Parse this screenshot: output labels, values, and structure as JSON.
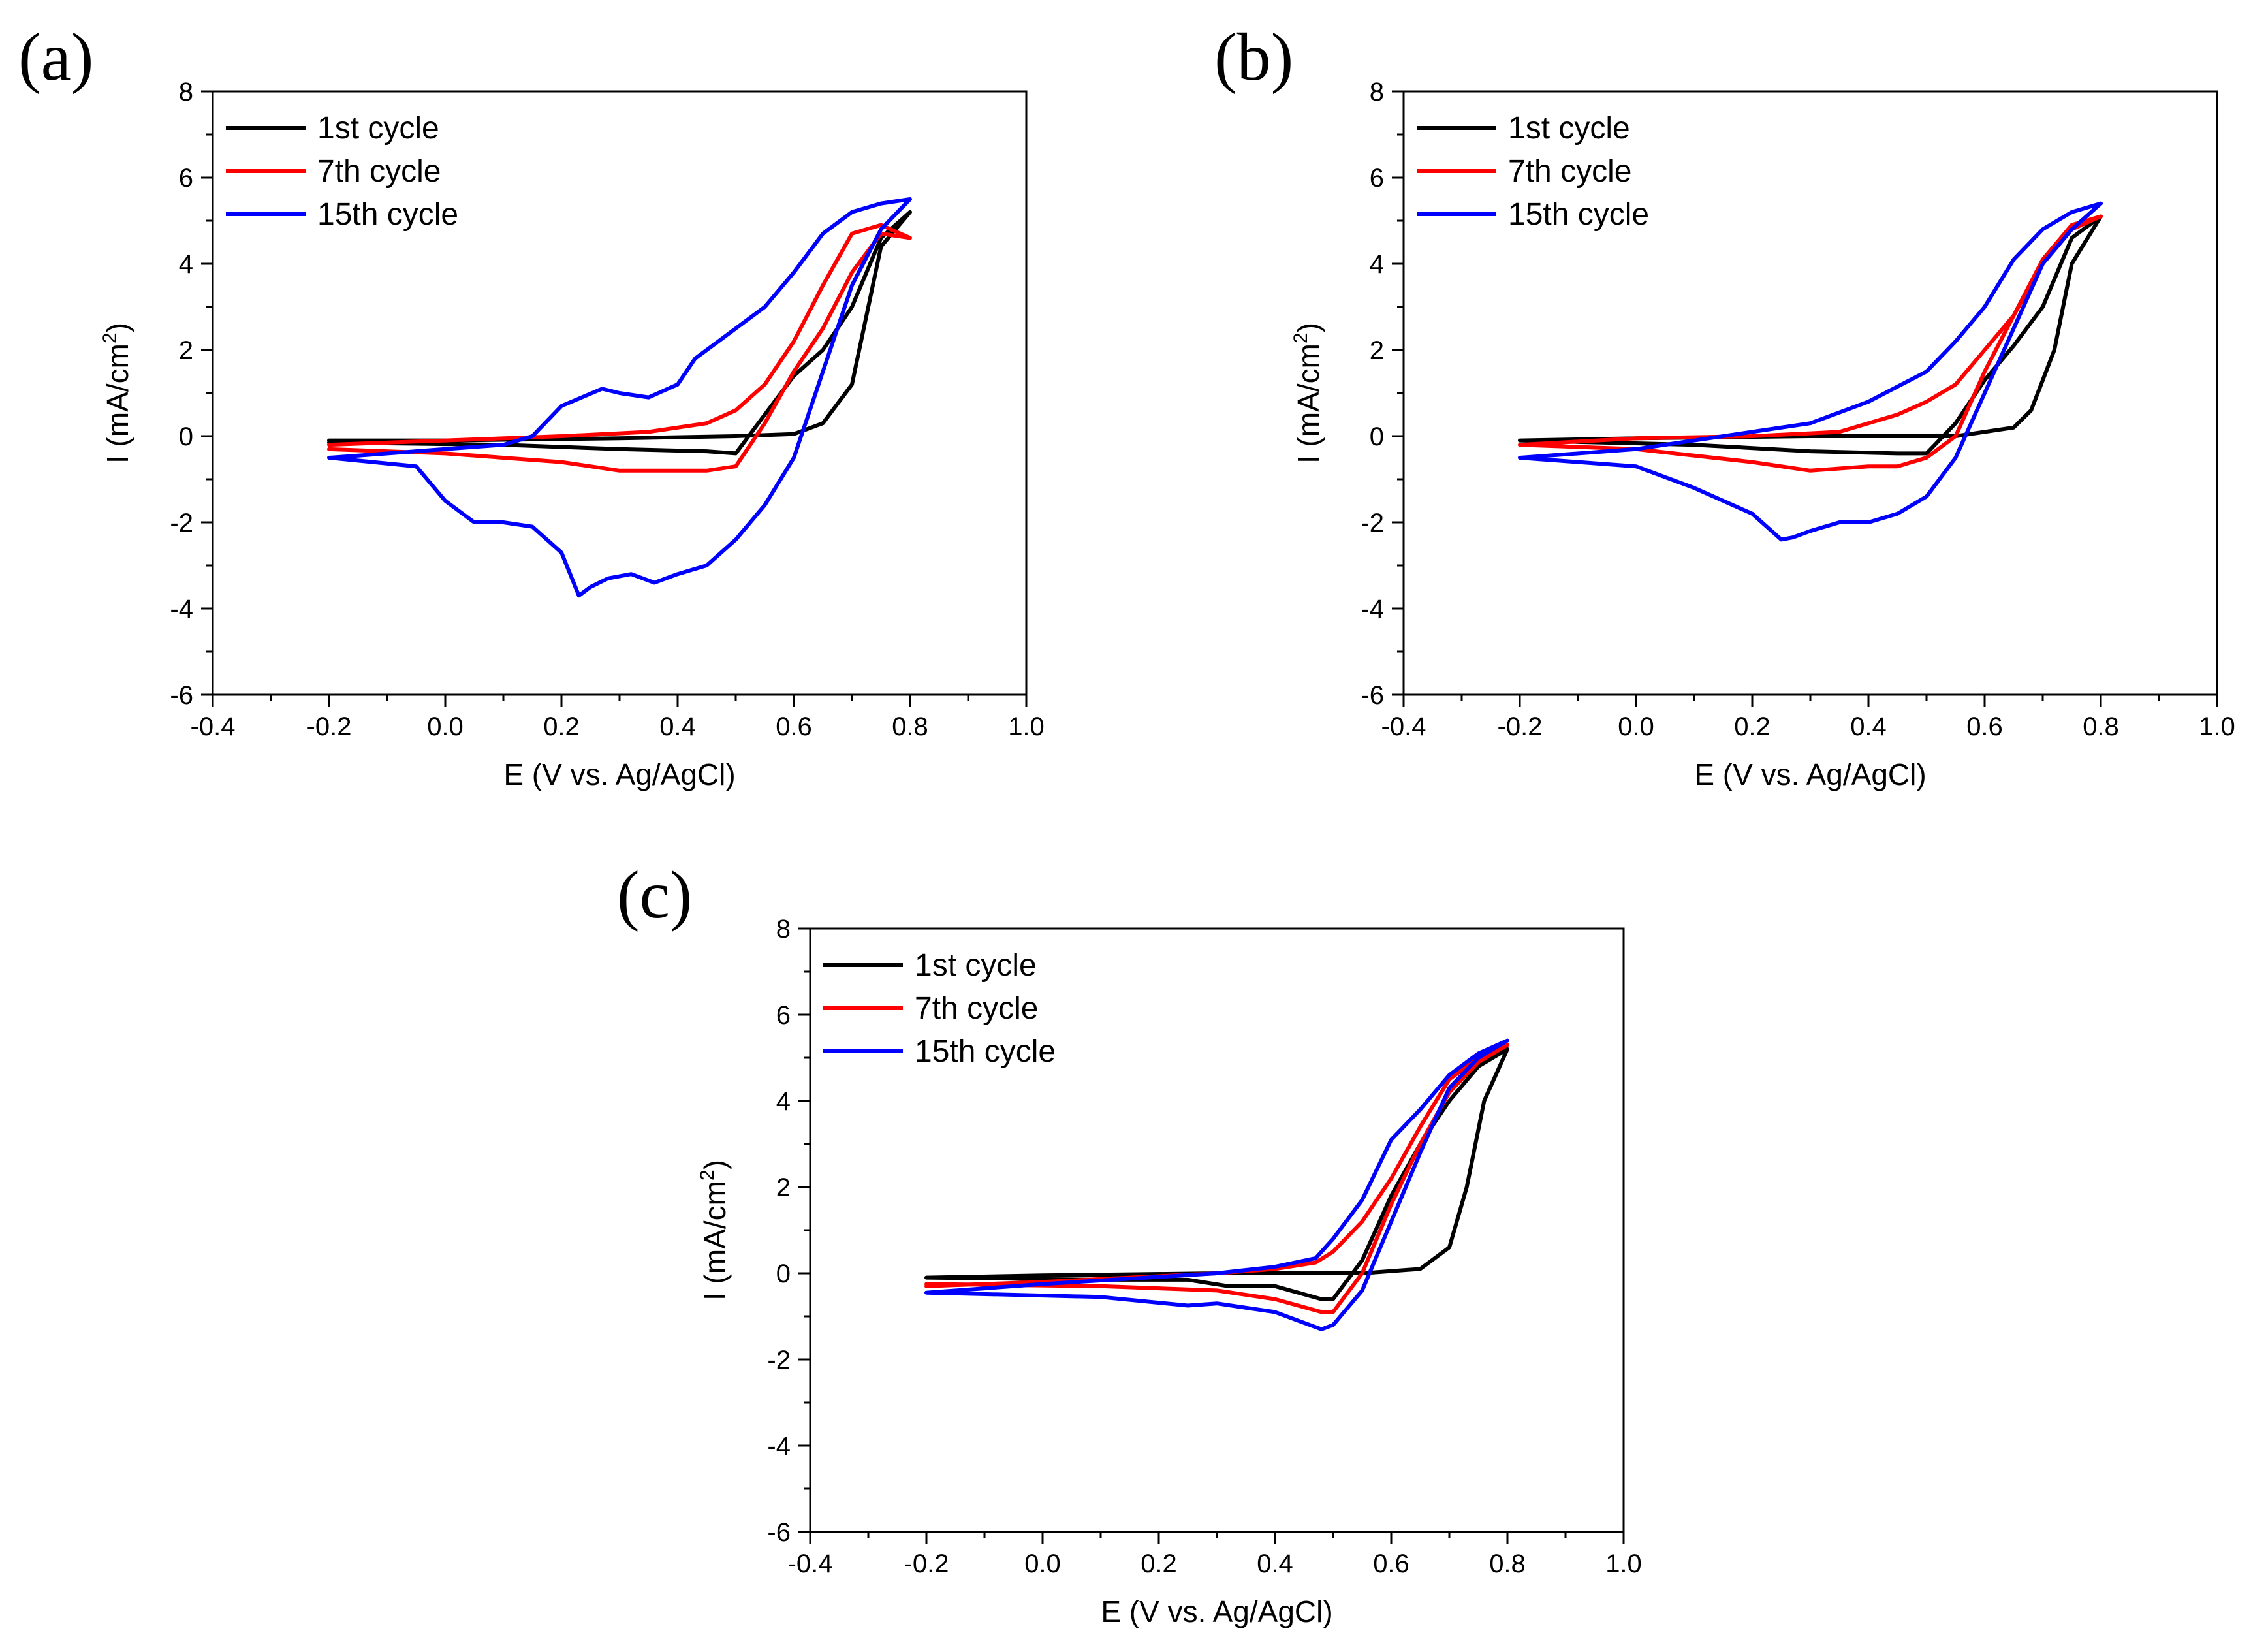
{
  "chart_data": [
    {
      "panel_label": "(a)",
      "type": "line",
      "xlabel": "E (V vs. Ag/AgCl)",
      "ylabel": "I (mA/cm2)",
      "ylabel_main": "I (mA/cm",
      "ylabel_sup": "2",
      "ylabel_close": ")",
      "xlim": [
        -0.4,
        1.0
      ],
      "ylim": [
        -6,
        8
      ],
      "xticks": [
        "-0.4",
        "-0.2",
        "0.0",
        "0.2",
        "0.4",
        "0.6",
        "0.8",
        "1.0"
      ],
      "yticks": [
        "-6",
        "-4",
        "-2",
        "0",
        "2",
        "4",
        "6",
        "8"
      ],
      "legend_position": "top-left",
      "series": [
        {
          "name": "1st cycle",
          "color": "#000000",
          "x": [
            -0.2,
            0.0,
            0.3,
            0.5,
            0.6,
            0.65,
            0.7,
            0.75,
            0.8,
            0.8,
            0.75,
            0.7,
            0.65,
            0.6,
            0.55,
            0.5,
            0.45,
            0.3,
            0.1,
            -0.2
          ],
          "y": [
            -0.1,
            -0.1,
            -0.05,
            0.0,
            0.05,
            0.3,
            1.2,
            4.4,
            5.2,
            5.2,
            4.6,
            3.0,
            2.0,
            1.4,
            0.5,
            -0.4,
            -0.35,
            -0.3,
            -0.2,
            -0.15
          ]
        },
        {
          "name": "7th cycle",
          "color": "#ff0000",
          "x": [
            -0.2,
            0.0,
            0.2,
            0.35,
            0.45,
            0.5,
            0.55,
            0.6,
            0.65,
            0.7,
            0.75,
            0.8,
            0.8,
            0.75,
            0.7,
            0.65,
            0.6,
            0.55,
            0.5,
            0.45,
            0.4,
            0.35,
            0.3,
            0.2,
            0.0,
            -0.2
          ],
          "y": [
            -0.2,
            -0.1,
            0.0,
            0.1,
            0.3,
            0.6,
            1.2,
            2.2,
            3.5,
            4.7,
            4.9,
            4.6,
            4.6,
            4.7,
            3.8,
            2.5,
            1.5,
            0.3,
            -0.7,
            -0.8,
            -0.8,
            -0.8,
            -0.8,
            -0.6,
            -0.4,
            -0.3
          ]
        },
        {
          "name": "15th cycle",
          "color": "#0000ff",
          "x": [
            -0.2,
            0.0,
            0.1,
            0.15,
            0.2,
            0.27,
            0.3,
            0.35,
            0.4,
            0.43,
            0.5,
            0.55,
            0.6,
            0.65,
            0.7,
            0.75,
            0.8,
            0.8,
            0.75,
            0.7,
            0.65,
            0.6,
            0.55,
            0.5,
            0.45,
            0.4,
            0.36,
            0.32,
            0.28,
            0.25,
            0.23,
            0.2,
            0.15,
            0.1,
            0.05,
            0.0,
            -0.05,
            -0.2
          ],
          "y": [
            -0.5,
            -0.3,
            -0.2,
            0.0,
            0.7,
            1.1,
            1.0,
            0.9,
            1.2,
            1.8,
            2.5,
            3.0,
            3.8,
            4.7,
            5.2,
            5.4,
            5.5,
            5.5,
            4.8,
            3.5,
            1.5,
            -0.5,
            -1.6,
            -2.4,
            -3.0,
            -3.2,
            -3.4,
            -3.2,
            -3.3,
            -3.5,
            -3.7,
            -2.7,
            -2.1,
            -2.0,
            -2.0,
            -1.5,
            -0.7,
            -0.5
          ]
        }
      ]
    },
    {
      "panel_label": "(b)",
      "type": "line",
      "xlabel": "E (V vs. Ag/AgCl)",
      "ylabel": "I (mA/cm2)",
      "ylabel_main": "I (mA/cm",
      "ylabel_sup": "2",
      "ylabel_close": ")",
      "xlim": [
        -0.4,
        1.0
      ],
      "ylim": [
        -6,
        8
      ],
      "xticks": [
        "-0.4",
        "-0.2",
        "0.0",
        "0.2",
        "0.4",
        "0.6",
        "0.8",
        "1.0"
      ],
      "yticks": [
        "-6",
        "-4",
        "-2",
        "0",
        "2",
        "4",
        "6",
        "8"
      ],
      "legend_position": "top-left",
      "series": [
        {
          "name": "1st cycle",
          "color": "#000000",
          "x": [
            -0.2,
            0.0,
            0.3,
            0.55,
            0.65,
            0.68,
            0.72,
            0.75,
            0.8,
            0.8,
            0.75,
            0.7,
            0.65,
            0.6,
            0.55,
            0.5,
            0.45,
            0.3,
            0.1,
            -0.2
          ],
          "y": [
            -0.1,
            -0.05,
            0.0,
            0.0,
            0.2,
            0.6,
            2.0,
            4.0,
            5.1,
            5.1,
            4.6,
            3.0,
            2.1,
            1.3,
            0.3,
            -0.4,
            -0.4,
            -0.35,
            -0.2,
            -0.1
          ]
        },
        {
          "name": "7th cycle",
          "color": "#ff0000",
          "x": [
            -0.2,
            0.0,
            0.2,
            0.35,
            0.45,
            0.5,
            0.55,
            0.6,
            0.65,
            0.7,
            0.75,
            0.8,
            0.8,
            0.75,
            0.7,
            0.65,
            0.6,
            0.55,
            0.5,
            0.45,
            0.4,
            0.35,
            0.3,
            0.2,
            0.0,
            -0.2
          ],
          "y": [
            -0.2,
            -0.05,
            0.0,
            0.1,
            0.5,
            0.8,
            1.2,
            2.0,
            2.8,
            4.0,
            4.8,
            5.1,
            5.1,
            4.9,
            4.1,
            2.8,
            1.5,
            0.0,
            -0.5,
            -0.7,
            -0.7,
            -0.75,
            -0.8,
            -0.6,
            -0.3,
            -0.2
          ]
        },
        {
          "name": "15th cycle",
          "color": "#0000ff",
          "x": [
            -0.2,
            0.0,
            0.2,
            0.3,
            0.4,
            0.5,
            0.55,
            0.6,
            0.65,
            0.7,
            0.75,
            0.8,
            0.8,
            0.75,
            0.7,
            0.65,
            0.6,
            0.55,
            0.5,
            0.45,
            0.4,
            0.35,
            0.3,
            0.27,
            0.25,
            0.2,
            0.1,
            0.0,
            -0.2
          ],
          "y": [
            -0.5,
            -0.3,
            0.1,
            0.3,
            0.8,
            1.5,
            2.2,
            3.0,
            4.1,
            4.8,
            5.2,
            5.4,
            5.4,
            4.8,
            4.0,
            2.5,
            1.0,
            -0.5,
            -1.4,
            -1.8,
            -2.0,
            -2.0,
            -2.2,
            -2.35,
            -2.4,
            -1.8,
            -1.2,
            -0.7,
            -0.5
          ]
        }
      ]
    },
    {
      "panel_label": "(c)",
      "type": "line",
      "xlabel": "E (V vs. Ag/AgCl)",
      "ylabel": "I (mA/cm2)",
      "ylabel_main": "I (mA/cm",
      "ylabel_sup": "2",
      "ylabel_close": ")",
      "xlim": [
        -0.4,
        1.0
      ],
      "ylim": [
        -6,
        8
      ],
      "xticks": [
        "-0.4",
        "-0.2",
        "0.0",
        "0.2",
        "0.4",
        "0.6",
        "0.8",
        "1.0"
      ],
      "yticks": [
        "-6",
        "-4",
        "-2",
        "0",
        "2",
        "4",
        "6",
        "8"
      ],
      "legend_position": "top-left",
      "series": [
        {
          "name": "1st cycle",
          "color": "#000000",
          "x": [
            -0.2,
            0.0,
            0.3,
            0.55,
            0.65,
            0.7,
            0.73,
            0.76,
            0.8,
            0.8,
            0.75,
            0.7,
            0.65,
            0.6,
            0.55,
            0.5,
            0.48,
            0.4,
            0.32,
            0.25,
            0.1,
            -0.2
          ],
          "y": [
            -0.1,
            -0.05,
            0.0,
            0.0,
            0.1,
            0.6,
            2.0,
            4.0,
            5.2,
            5.2,
            4.8,
            4.0,
            3.0,
            1.8,
            0.3,
            -0.6,
            -0.6,
            -0.3,
            -0.3,
            -0.15,
            -0.15,
            -0.1
          ]
        },
        {
          "name": "7th cycle",
          "color": "#ff0000",
          "x": [
            -0.2,
            0.0,
            0.3,
            0.4,
            0.47,
            0.5,
            0.55,
            0.6,
            0.65,
            0.7,
            0.75,
            0.8,
            0.8,
            0.75,
            0.7,
            0.65,
            0.6,
            0.55,
            0.5,
            0.48,
            0.4,
            0.3,
            0.1,
            -0.2
          ],
          "y": [
            -0.3,
            -0.2,
            0.0,
            0.1,
            0.25,
            0.5,
            1.2,
            2.2,
            3.4,
            4.5,
            5.0,
            5.3,
            5.3,
            4.9,
            4.2,
            3.0,
            1.6,
            0.0,
            -0.9,
            -0.9,
            -0.6,
            -0.4,
            -0.3,
            -0.25
          ]
        },
        {
          "name": "15th cycle",
          "color": "#0000ff",
          "x": [
            -0.2,
            0.0,
            0.3,
            0.4,
            0.47,
            0.5,
            0.55,
            0.6,
            0.65,
            0.7,
            0.75,
            0.8,
            0.8,
            0.75,
            0.7,
            0.65,
            0.6,
            0.55,
            0.5,
            0.48,
            0.4,
            0.3,
            0.25,
            0.1,
            -0.2
          ],
          "y": [
            -0.45,
            -0.25,
            0.0,
            0.15,
            0.35,
            0.8,
            1.7,
            3.1,
            3.8,
            4.6,
            5.1,
            5.4,
            5.4,
            5.0,
            4.3,
            2.8,
            1.2,
            -0.4,
            -1.2,
            -1.3,
            -0.9,
            -0.7,
            -0.75,
            -0.55,
            -0.45
          ]
        }
      ]
    }
  ]
}
